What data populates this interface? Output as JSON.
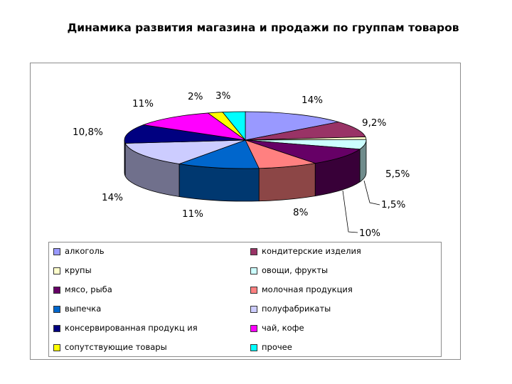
{
  "title": "Динамика развития магазина и продажи по группам товаров",
  "chart_data": {
    "type": "pie",
    "title": "Динамика развития магазина и продажи по группам товаров",
    "legend_position": "bottom",
    "slices": [
      {
        "name": "алкоголь",
        "value": 14,
        "label": "14%",
        "color": "#9999ff"
      },
      {
        "name": "кондитерские изделия",
        "value": 9.2,
        "label": "9,2%",
        "color": "#993366"
      },
      {
        "name": "крупы",
        "value": 1.5,
        "label": "1,5%",
        "color": "#ffffcc"
      },
      {
        "name": "овощи, фрукты",
        "value": 5.5,
        "label": "5,5%",
        "color": "#ccffff"
      },
      {
        "name": "мясо, рыба",
        "value": 10,
        "label": "10%",
        "color": "#660066"
      },
      {
        "name": "молочная продукция",
        "value": 8,
        "label": "8%",
        "color": "#ff8080"
      },
      {
        "name": "выпечка",
        "value": 11,
        "label": "11%",
        "color": "#0066cc"
      },
      {
        "name": "полуфабрикаты",
        "value": 14,
        "label": "14%",
        "color": "#ccccff"
      },
      {
        "name": "консервированная продукц ия",
        "value": 10.8,
        "label": "10,8%",
        "color": "#000080"
      },
      {
        "name": "чай, кофе",
        "value": 11,
        "label": "11%",
        "color": "#ff00ff"
      },
      {
        "name": "сопутствующие товары",
        "value": 2,
        "label": "2%",
        "color": "#ffff00"
      },
      {
        "name": "прочее",
        "value": 3,
        "label": "3%",
        "color": "#00ffff"
      }
    ]
  }
}
